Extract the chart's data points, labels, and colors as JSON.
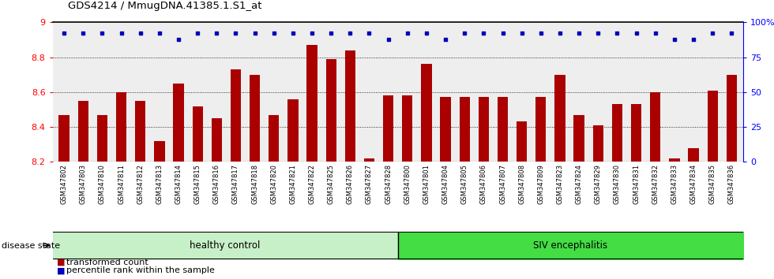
{
  "title": "GDS4214 / MmugDNA.41385.1.S1_at",
  "samples": [
    "GSM347802",
    "GSM347803",
    "GSM347810",
    "GSM347811",
    "GSM347812",
    "GSM347813",
    "GSM347814",
    "GSM347815",
    "GSM347816",
    "GSM347817",
    "GSM347818",
    "GSM347820",
    "GSM347821",
    "GSM347822",
    "GSM347825",
    "GSM347826",
    "GSM347827",
    "GSM347828",
    "GSM347800",
    "GSM347801",
    "GSM347804",
    "GSM347805",
    "GSM347806",
    "GSM347807",
    "GSM347808",
    "GSM347809",
    "GSM347823",
    "GSM347824",
    "GSM347829",
    "GSM347830",
    "GSM347831",
    "GSM347832",
    "GSM347833",
    "GSM347834",
    "GSM347835",
    "GSM347836"
  ],
  "bar_values": [
    8.47,
    8.55,
    8.47,
    8.6,
    8.55,
    8.32,
    8.65,
    8.52,
    8.45,
    8.73,
    8.7,
    8.47,
    8.56,
    8.87,
    8.79,
    8.84,
    8.22,
    8.58,
    8.58,
    8.76,
    8.57,
    8.57,
    8.57,
    8.57,
    8.43,
    8.57,
    8.7,
    8.47,
    8.41,
    8.53,
    8.53,
    8.6,
    8.22,
    8.28,
    8.61,
    8.7
  ],
  "percentile_high": 92,
  "percentile_low": 88,
  "percentile_flags": [
    1,
    1,
    1,
    1,
    1,
    1,
    0,
    1,
    1,
    1,
    1,
    1,
    1,
    1,
    1,
    1,
    1,
    0,
    1,
    1,
    0,
    1,
    1,
    1,
    1,
    1,
    1,
    1,
    1,
    1,
    1,
    1,
    0,
    0,
    1,
    1
  ],
  "ymin": 8.2,
  "ymax": 9.0,
  "yticks_left": [
    8.2,
    8.4,
    8.6,
    8.8,
    9.0
  ],
  "yticks_right": [
    0,
    25,
    50,
    75,
    100
  ],
  "bar_color": "#AA0000",
  "dot_color": "#0000BB",
  "healthy_count": 18,
  "healthy_label": "healthy control",
  "siv_label": "SIV encephalitis",
  "disease_state_label": "disease state",
  "legend_bar_label": "transformed count",
  "legend_dot_label": "percentile rank within the sample",
  "healthy_color": "#C8F0C8",
  "siv_color": "#44DD44",
  "plot_bg": "#EEEEEE",
  "fig_bg": "#FFFFFF"
}
